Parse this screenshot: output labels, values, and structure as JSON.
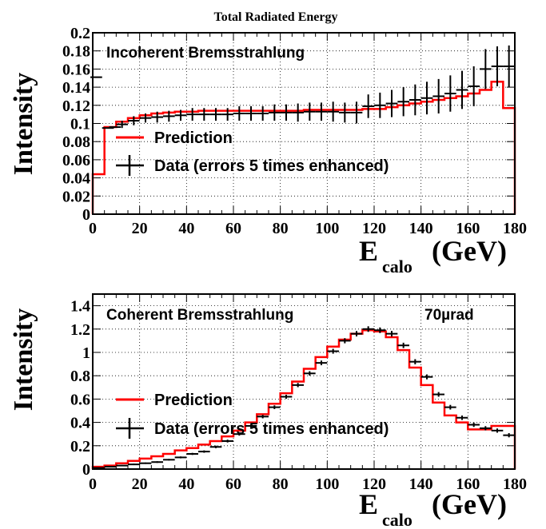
{
  "figure_title": "Total Radiated Energy",
  "colors": {
    "prediction": "#ff0000",
    "data": "#000000",
    "grid": "#000000"
  },
  "chart_data": [
    {
      "type": "line",
      "title": "Incoherent Bremsstrahlung",
      "ylabel": "Intensity",
      "xlabel_main": "E",
      "xlabel_sub": "calo",
      "xlabel_unit": "(GeV)",
      "xlim": [
        0,
        180
      ],
      "ylim": [
        0,
        0.2
      ],
      "grid": true,
      "legend_position": "bottom-left",
      "x_ticks": [
        "0",
        "20",
        "40",
        "60",
        "80",
        "100",
        "120",
        "140",
        "160",
        "180"
      ],
      "y_ticks": [
        "0",
        "0.02",
        "0.04",
        "0.06",
        "0.08",
        "0.1",
        "0.12",
        "0.14",
        "0.16",
        "0.18",
        "0.2"
      ],
      "legend": [
        "Prediction",
        "Data (errors 5 times enhanced)"
      ],
      "prediction": {
        "name": "Prediction",
        "edges": [
          0,
          5,
          10,
          15,
          20,
          25,
          30,
          35,
          40,
          45,
          50,
          55,
          60,
          65,
          70,
          75,
          80,
          85,
          90,
          95,
          100,
          105,
          110,
          115,
          120,
          125,
          130,
          135,
          140,
          145,
          150,
          155,
          160,
          165,
          170,
          175,
          180
        ],
        "values": [
          0.044,
          0.096,
          0.102,
          0.106,
          0.109,
          0.111,
          0.112,
          0.113,
          0.113,
          0.114,
          0.114,
          0.114,
          0.114,
          0.114,
          0.114,
          0.114,
          0.114,
          0.114,
          0.115,
          0.115,
          0.115,
          0.115,
          0.115,
          0.116,
          0.116,
          0.118,
          0.12,
          0.122,
          0.124,
          0.126,
          0.128,
          0.13,
          0.133,
          0.137,
          0.146,
          0.117
        ]
      },
      "data": {
        "name": "Data (errors 5 times enhanced)",
        "x": [
          1.5,
          6.5,
          9.5,
          12.5,
          17.5,
          22.5,
          27.5,
          32.5,
          37.5,
          42.5,
          47.5,
          52.5,
          57.5,
          62.5,
          67.5,
          72.5,
          77.5,
          82.5,
          87.5,
          92.5,
          97.5,
          102.5,
          107.5,
          112.5,
          117.5,
          122.5,
          127.5,
          132.5,
          137.5,
          142.5,
          147.5,
          152.5,
          157.5,
          162.5,
          167.5,
          172.5,
          177.5
        ],
        "y": [
          0.151,
          0.095,
          0.096,
          0.099,
          0.103,
          0.106,
          0.107,
          0.108,
          0.109,
          0.11,
          0.11,
          0.11,
          0.11,
          0.111,
          0.111,
          0.111,
          0.112,
          0.112,
          0.112,
          0.113,
          0.113,
          0.113,
          0.112,
          0.112,
          0.119,
          0.12,
          0.122,
          0.124,
          0.126,
          0.128,
          0.13,
          0.133,
          0.137,
          0.141,
          0.16,
          0.163,
          0.163
        ],
        "err": [
          0,
          0,
          0,
          0.004,
          0.005,
          0.005,
          0.006,
          0.006,
          0.006,
          0.007,
          0.007,
          0.007,
          0.007,
          0.008,
          0.008,
          0.008,
          0.009,
          0.009,
          0.01,
          0.01,
          0.01,
          0.011,
          0.011,
          0.012,
          0.013,
          0.014,
          0.015,
          0.016,
          0.017,
          0.018,
          0.019,
          0.02,
          0.021,
          0.022,
          0.022,
          0.022,
          0.023
        ]
      }
    },
    {
      "type": "line",
      "title": "Coherent Bremsstrahlung",
      "annotation": "70µrad",
      "ylabel": "Intensity",
      "xlabel_main": "E",
      "xlabel_sub": "calo",
      "xlabel_unit": "(GeV)",
      "xlim": [
        0,
        180
      ],
      "ylim": [
        0,
        1.5
      ],
      "grid": true,
      "legend_position": "bottom-left",
      "x_ticks": [
        "0",
        "20",
        "40",
        "60",
        "80",
        "100",
        "120",
        "140",
        "160",
        "180"
      ],
      "y_ticks": [
        "0",
        "0.2",
        "0.4",
        "0.6",
        "0.8",
        "1",
        "1.2",
        "1.4"
      ],
      "legend": [
        "Prediction",
        "Data (errors 5 times enhanced)"
      ],
      "prediction": {
        "name": "Prediction",
        "edges": [
          0,
          5,
          10,
          15,
          20,
          25,
          30,
          35,
          40,
          45,
          50,
          55,
          60,
          65,
          70,
          75,
          80,
          85,
          90,
          95,
          100,
          105,
          110,
          115,
          120,
          125,
          130,
          135,
          140,
          145,
          150,
          155,
          160,
          165,
          170,
          175,
          180
        ],
        "values": [
          0.02,
          0.03,
          0.05,
          0.07,
          0.09,
          0.11,
          0.13,
          0.16,
          0.18,
          0.21,
          0.24,
          0.28,
          0.33,
          0.4,
          0.47,
          0.56,
          0.65,
          0.75,
          0.86,
          0.96,
          1.05,
          1.11,
          1.16,
          1.19,
          1.18,
          1.13,
          1.02,
          0.87,
          0.72,
          0.57,
          0.46,
          0.4,
          0.34,
          0.34,
          0.37,
          0.37
        ]
      },
      "data": {
        "name": "Data (errors 5 times enhanced)",
        "x": [
          2.5,
          7.5,
          12.5,
          17.5,
          22.5,
          27.5,
          32.5,
          37.5,
          42.5,
          47.5,
          52.5,
          57.5,
          62.5,
          67.5,
          72.5,
          77.5,
          82.5,
          87.5,
          92.5,
          97.5,
          102.5,
          107.5,
          112.5,
          117.5,
          122.5,
          127.5,
          132.5,
          137.5,
          142.5,
          147.5,
          152.5,
          157.5,
          162.5,
          167.5,
          172.5,
          177.5
        ],
        "y": [
          0.01,
          0.02,
          0.03,
          0.04,
          0.05,
          0.06,
          0.08,
          0.1,
          0.13,
          0.15,
          0.19,
          0.24,
          0.3,
          0.37,
          0.45,
          0.53,
          0.62,
          0.72,
          0.82,
          0.91,
          1.01,
          1.1,
          1.16,
          1.2,
          1.19,
          1.16,
          1.06,
          0.92,
          0.79,
          0.64,
          0.53,
          0.44,
          0.38,
          0.35,
          0.33,
          0.29
        ],
        "err": [
          0.005,
          0.005,
          0.005,
          0.006,
          0.006,
          0.007,
          0.007,
          0.008,
          0.009,
          0.01,
          0.011,
          0.012,
          0.013,
          0.014,
          0.015,
          0.016,
          0.017,
          0.018,
          0.019,
          0.02,
          0.021,
          0.022,
          0.023,
          0.024,
          0.024,
          0.024,
          0.023,
          0.022,
          0.021,
          0.02,
          0.02,
          0.019,
          0.019,
          0.018,
          0.018,
          0.018
        ]
      }
    }
  ]
}
